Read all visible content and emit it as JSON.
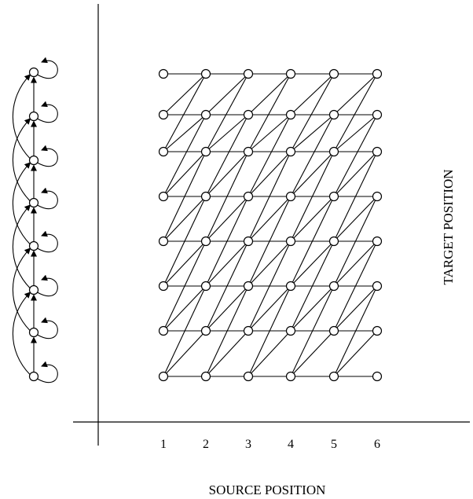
{
  "diagram": {
    "x_axis_label": "SOURCE POSITION",
    "y_axis_label": "TARGET POSITION",
    "x_ticks": [
      "1",
      "2",
      "3",
      "4",
      "5",
      "6"
    ],
    "target_rows": 8,
    "state_chain_nodes": 8,
    "line_color": "#000000",
    "node_fill": "#ffffff"
  }
}
